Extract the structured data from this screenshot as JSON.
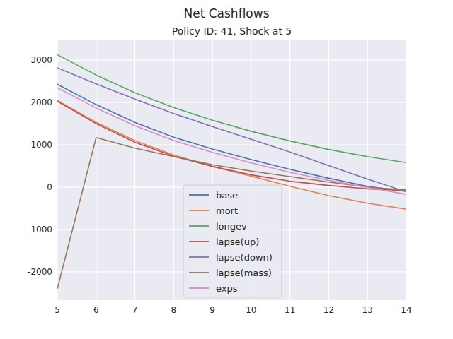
{
  "chart_data": {
    "type": "line",
    "title": "Net Cashflows",
    "subtitle": "Policy ID: 41, Shock at 5",
    "x": [
      5,
      6,
      7,
      8,
      9,
      10,
      11,
      12,
      13,
      14
    ],
    "xlim": [
      5,
      14
    ],
    "xticks": [
      5,
      6,
      7,
      8,
      9,
      10,
      11,
      12,
      13,
      14
    ],
    "ylim": [
      -2670,
      3470
    ],
    "yticks": [
      -2000,
      -1000,
      0,
      1000,
      2000,
      3000
    ],
    "grid": true,
    "legend": "lower center",
    "series": [
      {
        "name": "base",
        "color": "#4c72b0",
        "values": [
          2430,
          1950,
          1530,
          1180,
          900,
          650,
          420,
          210,
          20,
          -100
        ]
      },
      {
        "name": "mort",
        "color": "#dd8452",
        "values": [
          2050,
          1530,
          1100,
          760,
          490,
          260,
          20,
          -200,
          -380,
          -520
        ]
      },
      {
        "name": "longev",
        "color": "#55a868",
        "values": [
          3130,
          2650,
          2230,
          1880,
          1580,
          1320,
          1090,
          890,
          720,
          580
        ]
      },
      {
        "name": "lapse(up)",
        "color": "#c44e52",
        "values": [
          2030,
          1500,
          1060,
          730,
          490,
          290,
          140,
          40,
          -40,
          -80
        ]
      },
      {
        "name": "lapse(down)",
        "color": "#8172b3",
        "values": [
          2820,
          2440,
          2080,
          1740,
          1430,
          1130,
          830,
          510,
          190,
          -110
        ]
      },
      {
        "name": "lapse(mass)",
        "color": "#937860",
        "values": [
          -2400,
          1170,
          920,
          720,
          530,
          380,
          250,
          120,
          0,
          -70
        ]
      },
      {
        "name": "exps",
        "color": "#da8bc3",
        "values": [
          2350,
          1870,
          1450,
          1100,
          820,
          570,
          350,
          160,
          -10,
          -170
        ]
      }
    ]
  }
}
